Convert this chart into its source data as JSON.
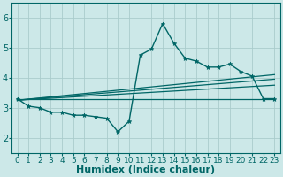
{
  "bg_color": "#cce8e8",
  "grid_color": "#aacccc",
  "line_color": "#006666",
  "xlabel": "Humidex (Indice chaleur)",
  "xlabel_fontsize": 8,
  "tick_fontsize": 6.5,
  "xlim": [
    -0.5,
    23.5
  ],
  "ylim": [
    1.5,
    6.5
  ],
  "yticks": [
    2,
    3,
    4,
    5,
    6
  ],
  "xticks": [
    0,
    1,
    2,
    3,
    4,
    5,
    6,
    7,
    8,
    9,
    10,
    11,
    12,
    13,
    14,
    15,
    16,
    17,
    18,
    19,
    20,
    21,
    22,
    23
  ],
  "series": [
    {
      "x": [
        0,
        1,
        2,
        3,
        4,
        5,
        6,
        7,
        8,
        9,
        10,
        11,
        12,
        13,
        14,
        15,
        16,
        17,
        18,
        19,
        20,
        21,
        22,
        23
      ],
      "y": [
        3.3,
        3.05,
        3.0,
        2.85,
        2.85,
        2.75,
        2.75,
        2.7,
        2.65,
        2.2,
        2.55,
        4.75,
        4.95,
        5.8,
        5.15,
        4.65,
        4.55,
        4.35,
        4.35,
        4.45,
        4.2,
        4.05,
        3.3,
        3.3
      ],
      "marker": "*",
      "markersize": 3.5,
      "linewidth": 1.0
    },
    {
      "x": [
        0,
        23
      ],
      "y": [
        3.3,
        3.3
      ],
      "marker": null,
      "markersize": 0,
      "linewidth": 0.9
    },
    {
      "x": [
        0,
        23
      ],
      "y": [
        3.25,
        4.1
      ],
      "marker": null,
      "markersize": 0,
      "linewidth": 0.9
    },
    {
      "x": [
        0,
        23
      ],
      "y": [
        3.25,
        3.95
      ],
      "marker": null,
      "markersize": 0,
      "linewidth": 0.9
    },
    {
      "x": [
        0,
        23
      ],
      "y": [
        3.25,
        3.75
      ],
      "marker": null,
      "markersize": 0,
      "linewidth": 0.9
    }
  ]
}
